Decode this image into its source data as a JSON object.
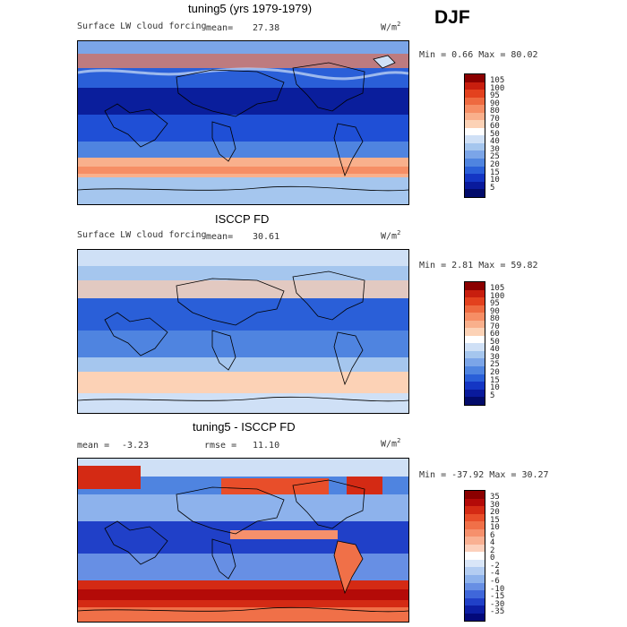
{
  "season": "DJF",
  "panels": [
    {
      "title": "tuning5 (yrs 1979-1979)",
      "field": "Surface LW cloud forcing",
      "stat_label": "mean=",
      "stat_value": "27.38",
      "units_base": "W/m",
      "units_exp": "2",
      "min_label": "Min =",
      "min_value": "0.66",
      "max_label": "Max =",
      "max_value": "80.02",
      "colorbar": {
        "levels": [
          "105",
          "100",
          "95",
          "90",
          "80",
          "70",
          "60",
          "50",
          "40",
          "30",
          "25",
          "20",
          "15",
          "10",
          "5"
        ],
        "colors": [
          "#8b0000",
          "#c81e0e",
          "#e3411e",
          "#ee6a40",
          "#f68e65",
          "#f9b08c",
          "#fcd2b6",
          "#ffffff",
          "#cfe0f6",
          "#a5c6ee",
          "#7ba5e8",
          "#4f84e0",
          "#2a5fd8",
          "#1436c4",
          "#091a9c",
          "#020b6a"
        ]
      }
    },
    {
      "title": "ISCCP FD",
      "field": "Surface LW cloud forcing",
      "stat_label": "mean=",
      "stat_value": "30.61",
      "units_base": "W/m",
      "units_exp": "2",
      "min_label": "Min =",
      "min_value": "2.81",
      "max_label": "Max =",
      "max_value": "59.82",
      "colorbar": {
        "levels": [
          "105",
          "100",
          "95",
          "90",
          "80",
          "70",
          "60",
          "50",
          "40",
          "30",
          "25",
          "20",
          "15",
          "10",
          "5"
        ],
        "colors": [
          "#8b0000",
          "#c81e0e",
          "#e3411e",
          "#ee6a40",
          "#f68e65",
          "#f9b08c",
          "#fcd2b6",
          "#ffffff",
          "#cfe0f6",
          "#a5c6ee",
          "#7ba5e8",
          "#4f84e0",
          "#2a5fd8",
          "#1436c4",
          "#091a9c",
          "#020b6a"
        ]
      }
    },
    {
      "title": "tuning5 - ISCCP FD",
      "mean_label": "mean =",
      "mean_value": "-3.23",
      "rmse_label": "rmse =",
      "rmse_value": "11.10",
      "units_base": "W/m",
      "units_exp": "2",
      "min_label": "Min =",
      "min_value": "-37.92",
      "max_label": "Max =",
      "max_value": "30.27",
      "colorbar": {
        "levels": [
          "35",
          "30",
          "20",
          "15",
          "10",
          "6",
          "4",
          "2",
          "0",
          "-2",
          "-4",
          "-6",
          "-10",
          "-15",
          "-30",
          "-35"
        ],
        "colors": [
          "#8b0000",
          "#b40a08",
          "#d42a14",
          "#e84e2a",
          "#f07048",
          "#f6906c",
          "#f9b092",
          "#fcd0bc",
          "#ffffff",
          "#d9e6f8",
          "#b3cdf2",
          "#8db2ec",
          "#678fe4",
          "#3f67da",
          "#2040c8",
          "#0c1ea4",
          "#03097a"
        ]
      }
    }
  ]
}
